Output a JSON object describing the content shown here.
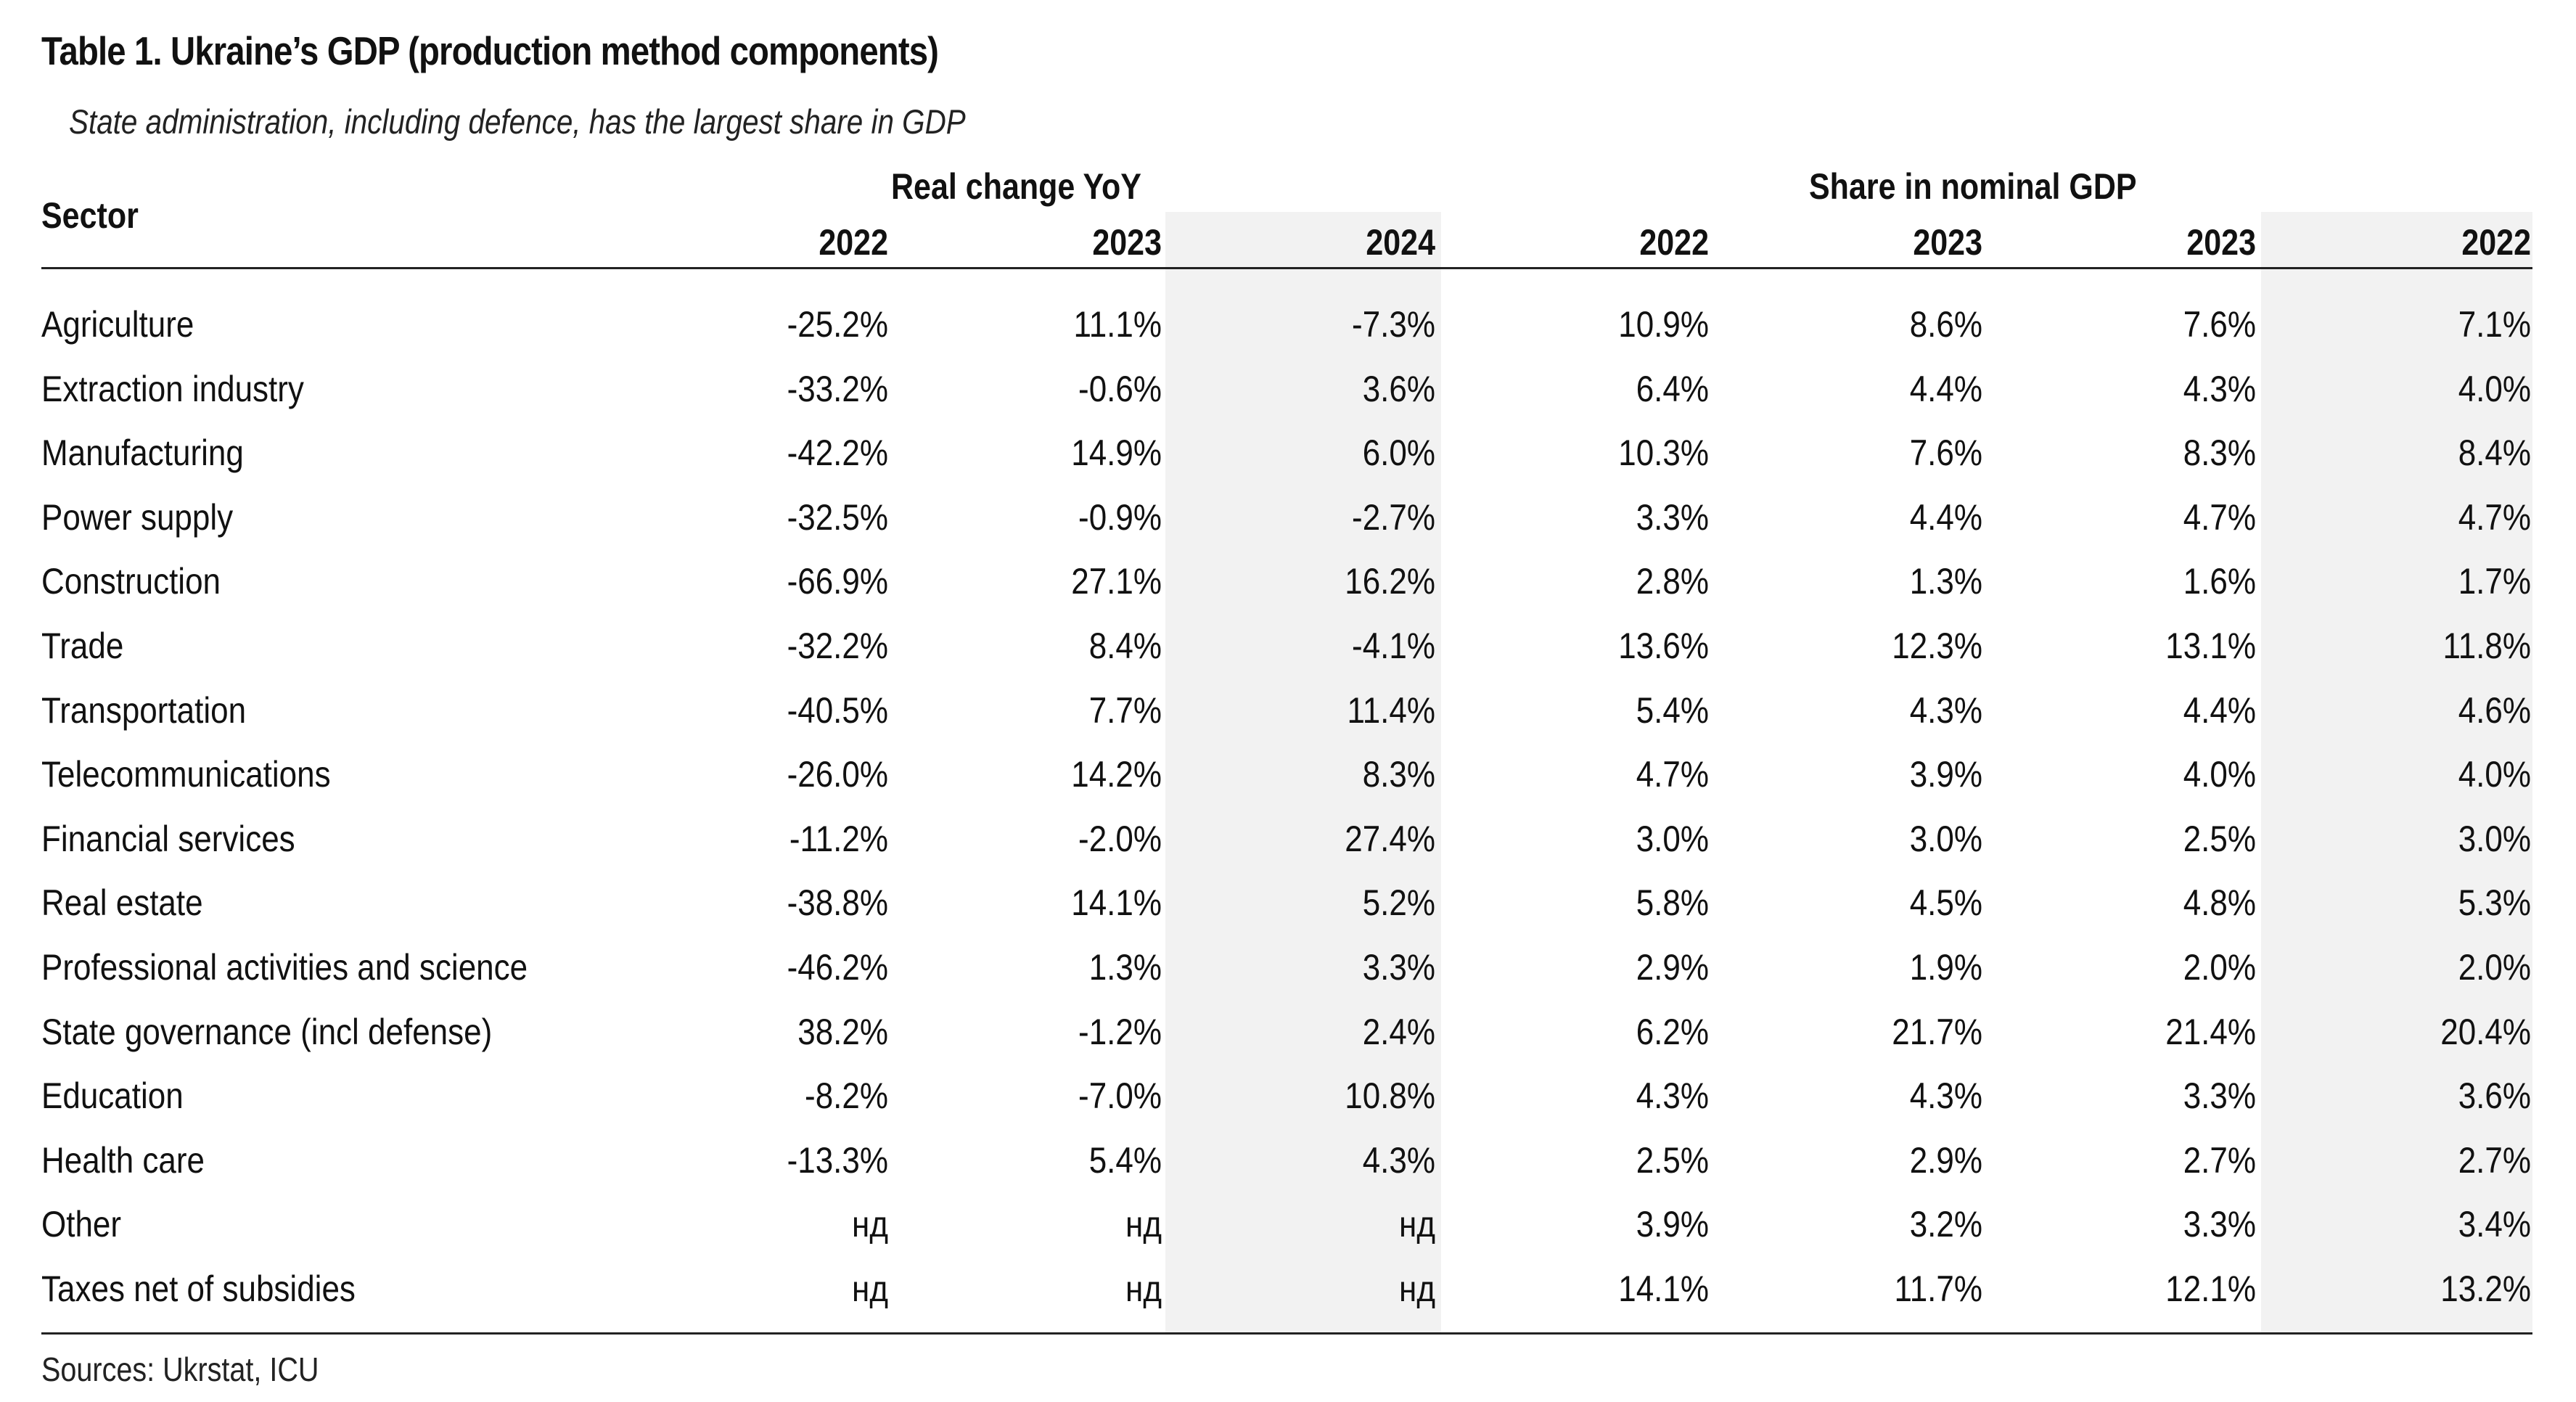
{
  "title": "Table 1. Ukraine’s GDP (production method components)",
  "subtitle": "State administration, including defence, has the largest share in GDP",
  "header": {
    "sector": "Sector",
    "group_real": "Real change YoY",
    "group_share": "Share in nominal GDP",
    "years": [
      "2022",
      "2023",
      "2024",
      "2022",
      "2023",
      "2023",
      "2022"
    ]
  },
  "shaded_columns": [
    2,
    6
  ],
  "rows": [
    {
      "sector": "Agriculture",
      "values": [
        "-25.2%",
        "11.1%",
        "-7.3%",
        "10.9%",
        "8.6%",
        "7.6%",
        "7.1%"
      ]
    },
    {
      "sector": "Extraction industry",
      "values": [
        "-33.2%",
        "-0.6%",
        "3.6%",
        "6.4%",
        "4.4%",
        "4.3%",
        "4.0%"
      ]
    },
    {
      "sector": "Manufacturing",
      "values": [
        "-42.2%",
        "14.9%",
        "6.0%",
        "10.3%",
        "7.6%",
        "8.3%",
        "8.4%"
      ]
    },
    {
      "sector": "Power supply",
      "values": [
        "-32.5%",
        "-0.9%",
        "-2.7%",
        "3.3%",
        "4.4%",
        "4.7%",
        "4.7%"
      ]
    },
    {
      "sector": "Construction",
      "values": [
        "-66.9%",
        "27.1%",
        "16.2%",
        "2.8%",
        "1.3%",
        "1.6%",
        "1.7%"
      ]
    },
    {
      "sector": "Trade",
      "values": [
        "-32.2%",
        "8.4%",
        "-4.1%",
        "13.6%",
        "12.3%",
        "13.1%",
        "11.8%"
      ]
    },
    {
      "sector": "Transportation",
      "values": [
        "-40.5%",
        "7.7%",
        "11.4%",
        "5.4%",
        "4.3%",
        "4.4%",
        "4.6%"
      ]
    },
    {
      "sector": "Telecommunications",
      "values": [
        "-26.0%",
        "14.2%",
        "8.3%",
        "4.7%",
        "3.9%",
        "4.0%",
        "4.0%"
      ]
    },
    {
      "sector": "Financial services",
      "values": [
        "-11.2%",
        "-2.0%",
        "27.4%",
        "3.0%",
        "3.0%",
        "2.5%",
        "3.0%"
      ]
    },
    {
      "sector": "Real estate",
      "values": [
        "-38.8%",
        "14.1%",
        "5.2%",
        "5.8%",
        "4.5%",
        "4.8%",
        "5.3%"
      ]
    },
    {
      "sector": "Professional activities and science",
      "values": [
        "-46.2%",
        "1.3%",
        "3.3%",
        "2.9%",
        "1.9%",
        "2.0%",
        "2.0%"
      ]
    },
    {
      "sector": "State governance (incl defense)",
      "values": [
        "38.2%",
        "-1.2%",
        "2.4%",
        "6.2%",
        "21.7%",
        "21.4%",
        "20.4%"
      ]
    },
    {
      "sector": "Education",
      "values": [
        "-8.2%",
        "-7.0%",
        "10.8%",
        "4.3%",
        "4.3%",
        "3.3%",
        "3.6%"
      ]
    },
    {
      "sector": "Health care",
      "values": [
        "-13.3%",
        "5.4%",
        "4.3%",
        "2.5%",
        "2.9%",
        "2.7%",
        "2.7%"
      ]
    },
    {
      "sector": "Other",
      "values": [
        "нд",
        "нд",
        "нд",
        "3.9%",
        "3.2%",
        "3.3%",
        "3.4%"
      ]
    },
    {
      "sector": "Taxes net of subsidies",
      "values": [
        "нд",
        "нд",
        "нд",
        "14.1%",
        "11.7%",
        "12.1%",
        "13.2%"
      ]
    }
  ],
  "source": "Sources: Ukrstat, ICU",
  "colors": {
    "shade": "#f2f2f2",
    "rule": "#222222",
    "text": "#111111"
  }
}
